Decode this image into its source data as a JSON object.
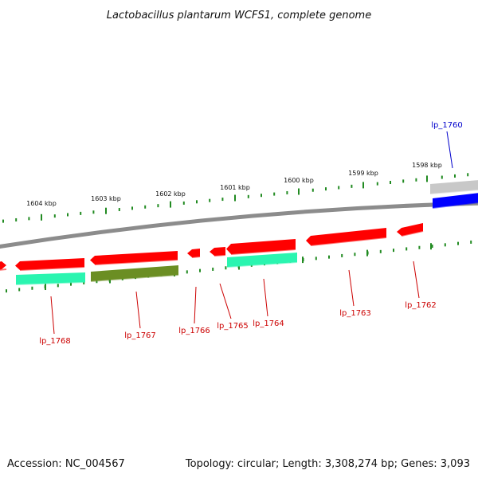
{
  "title": "Lactobacillus plantarum WCFS1, complete genome",
  "footer": {
    "accession": "Accession: NC_004567",
    "summary": "Topology: circular; Length: 3,308,274 bp; Genes: 3,093"
  },
  "colors": {
    "backbone": "#8c8c8c",
    "tick": "#228b22",
    "forward_gene": "#ff0000",
    "reverse_gene": "#ff0000",
    "cds_teal": "#2af5b0",
    "cds_olive": "#6b8e23",
    "cds_blue": "#0000ff",
    "cds_grey": "#c8c8c8",
    "label_red": "#cc0000",
    "label_blue": "#0000cc"
  },
  "tick_labels": [
    "1604 kbp",
    "1603 kbp",
    "1602 kbp",
    "1601 kbp",
    "1600 kbp",
    "1599 kbp",
    "1598 kbp"
  ],
  "genes": [
    {
      "name": "lp_1768",
      "color": "label_red"
    },
    {
      "name": "lp_1767",
      "color": "label_red"
    },
    {
      "name": "lp_1766",
      "color": "label_red"
    },
    {
      "name": "lp_1765",
      "color": "label_red"
    },
    {
      "name": "lp_1764",
      "color": "label_red"
    },
    {
      "name": "lp_1763",
      "color": "label_red"
    },
    {
      "name": "lp_1762",
      "color": "label_red"
    },
    {
      "name": "lp_1760",
      "color": "label_blue"
    }
  ]
}
